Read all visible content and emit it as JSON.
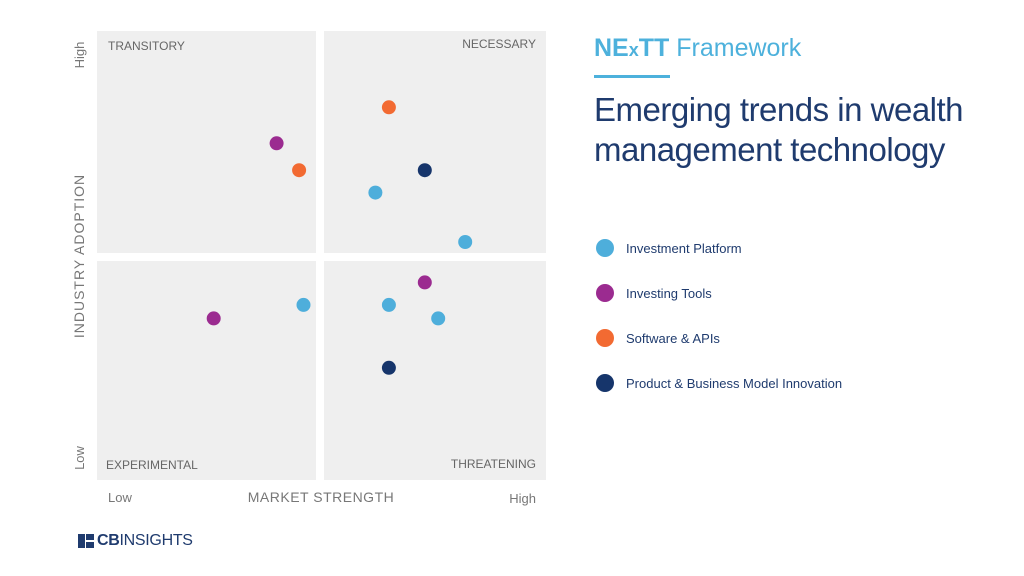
{
  "chart_data": {
    "type": "scatter",
    "xlabel": "MARKET STRENGTH",
    "ylabel": "INDUSTRY ADOPTION",
    "x_low": "Low",
    "x_high": "High",
    "y_low": "Low",
    "y_high": "High",
    "xlim": [
      0,
      1
    ],
    "ylim": [
      0,
      1
    ],
    "quadrants": {
      "top_left": "TRANSITORY",
      "top_right": "NECESSARY",
      "bottom_left": "EXPERIMENTAL",
      "bottom_right": "THREATENING"
    },
    "points": [
      {
        "x": 0.65,
        "y": 0.83,
        "category": "Software & APIs"
      },
      {
        "x": 0.4,
        "y": 0.75,
        "category": "Investing Tools"
      },
      {
        "x": 0.45,
        "y": 0.69,
        "category": "Software & APIs"
      },
      {
        "x": 0.73,
        "y": 0.69,
        "category": "Product & Business Model Innovation"
      },
      {
        "x": 0.62,
        "y": 0.64,
        "category": "Investment Platform"
      },
      {
        "x": 0.82,
        "y": 0.53,
        "category": "Investment Platform"
      },
      {
        "x": 0.73,
        "y": 0.44,
        "category": "Investing Tools"
      },
      {
        "x": 0.46,
        "y": 0.39,
        "category": "Investment Platform"
      },
      {
        "x": 0.65,
        "y": 0.39,
        "category": "Investment Platform"
      },
      {
        "x": 0.76,
        "y": 0.36,
        "category": "Investment Platform"
      },
      {
        "x": 0.26,
        "y": 0.36,
        "category": "Investing Tools"
      },
      {
        "x": 0.65,
        "y": 0.25,
        "category": "Product & Business Model Innovation"
      }
    ]
  },
  "framework": {
    "title_prefix_ne": "NE",
    "title_prefix_x": "x",
    "title_prefix_tt": "TT",
    "title_suffix": "Framework",
    "headline_line1": "Emerging trends in wealth",
    "headline_line2": "management technology"
  },
  "legend": [
    {
      "label": "Investment Platform",
      "color": "#4eaedb"
    },
    {
      "label": "Investing Tools",
      "color": "#9b2b90"
    },
    {
      "label": "Software & APIs",
      "color": "#f26a32"
    },
    {
      "label": "Product & Business Model Innovation",
      "color": "#16356b"
    }
  ],
  "logo": {
    "cb": "CB",
    "insights": "INSIGHTS"
  }
}
